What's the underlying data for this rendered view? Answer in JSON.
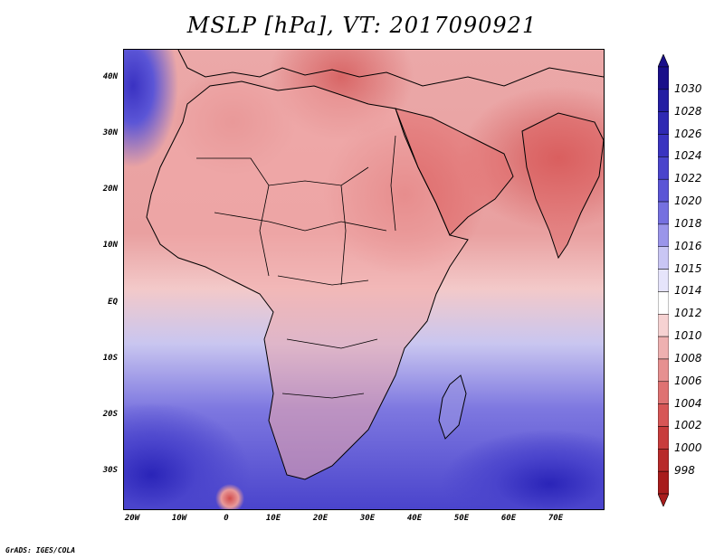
{
  "title": "MSLP [hPa], VT: 2017090921",
  "footer": "GrADS: IGES/COLA",
  "map": {
    "region": "Africa / Middle East / Indian Ocean",
    "lat_ticks": [
      "40N",
      "30N",
      "20N",
      "10N",
      "EQ",
      "10S",
      "20S",
      "30S"
    ],
    "lon_ticks": [
      "20W",
      "10W",
      "0",
      "10E",
      "20E",
      "30E",
      "40E",
      "50E",
      "60E",
      "70E"
    ]
  },
  "legend": {
    "levels": [
      "1030",
      "1028",
      "1026",
      "1024",
      "1022",
      "1020",
      "1018",
      "1016",
      "1015",
      "1014",
      "1012",
      "1010",
      "1008",
      "1006",
      "1004",
      "1002",
      "1000",
      "998"
    ],
    "colors": [
      "#1a0f8a",
      "#241ea3",
      "#2f29b3",
      "#3a33c0",
      "#4a44cc",
      "#5b55d6",
      "#7570e0",
      "#9a95ea",
      "#c9c6f4",
      "#e6e4fb",
      "#ffffff",
      "#f6d2d2",
      "#eeb0b0",
      "#e69090",
      "#df7272",
      "#d75656",
      "#c83c3c",
      "#b82a2a",
      "#a81c1c"
    ]
  }
}
